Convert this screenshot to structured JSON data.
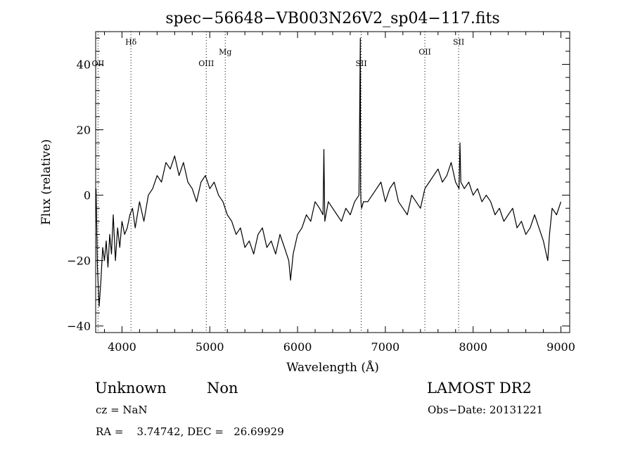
{
  "chart_data": {
    "type": "line",
    "title": "spec−56648−VB003N26V2_sp04−117.fits",
    "xlabel": "Wavelength (Å)",
    "ylabel": "Flux (relative)",
    "xlim": [
      3700,
      9100
    ],
    "ylim": [
      -42,
      50
    ],
    "xticks": [
      4000,
      5000,
      6000,
      7000,
      8000,
      9000
    ],
    "xtick_labels": [
      "4000",
      "5000",
      "6000",
      "7000",
      "8000",
      "9000"
    ],
    "yticks": [
      -40,
      -20,
      0,
      20,
      40
    ],
    "ytick_labels": [
      "−40",
      "−20",
      "0",
      "20",
      "40"
    ],
    "grid": false,
    "line_color": "#000000",
    "series": [
      {
        "x": [
          3705,
          3720,
          3740,
          3760,
          3780,
          3800,
          3820,
          3840,
          3860,
          3880,
          3900,
          3925,
          3950,
          3975,
          4000,
          4030,
          4060,
          4090,
          4120,
          4150,
          4200,
          4250,
          4300,
          4350,
          4400,
          4450,
          4500,
          4550,
          4600,
          4650,
          4700,
          4750,
          4800,
          4850,
          4900,
          4950,
          5000,
          5050,
          5100,
          5150,
          5200,
          5250,
          5300,
          5350,
          5400,
          5450,
          5500,
          5550,
          5600,
          5650,
          5700,
          5750,
          5800,
          5850,
          5900,
          5920,
          5950,
          6000,
          6050,
          6100,
          6150,
          6200,
          6250,
          6290,
          6300,
          6310,
          6350,
          6400,
          6450,
          6500,
          6550,
          6600,
          6650,
          6700,
          6715,
          6718,
          6722,
          6730,
          6750,
          6800,
          6850,
          6900,
          6950,
          7000,
          7050,
          7100,
          7150,
          7200,
          7250,
          7300,
          7350,
          7400,
          7450,
          7500,
          7550,
          7600,
          7650,
          7700,
          7750,
          7800,
          7840,
          7850,
          7860,
          7900,
          7950,
          8000,
          8050,
          8100,
          8150,
          8200,
          8250,
          8300,
          8350,
          8400,
          8450,
          8500,
          8550,
          8600,
          8650,
          8700,
          8750,
          8800,
          8850,
          8870,
          8900,
          8950,
          9000
        ],
        "y": [
          2,
          -22,
          -34,
          -26,
          -16,
          -20,
          -14,
          -22,
          -12,
          -18,
          -6,
          -20,
          -10,
          -16,
          -8,
          -12,
          -10,
          -6,
          -4,
          -10,
          -2,
          -8,
          0,
          2,
          6,
          4,
          10,
          8,
          12,
          6,
          10,
          4,
          2,
          -2,
          4,
          6,
          2,
          4,
          0,
          -2,
          -6,
          -8,
          -12,
          -10,
          -16,
          -14,
          -18,
          -12,
          -10,
          -16,
          -14,
          -18,
          -12,
          -16,
          -20,
          -26,
          -18,
          -12,
          -10,
          -6,
          -8,
          -2,
          -4,
          -6,
          14,
          -8,
          -2,
          -4,
          -6,
          -8,
          -4,
          -6,
          -2,
          0,
          48,
          2,
          -2,
          -4,
          -2,
          -2,
          0,
          2,
          4,
          -2,
          2,
          4,
          -2,
          -4,
          -6,
          0,
          -2,
          -4,
          2,
          4,
          6,
          8,
          4,
          6,
          10,
          4,
          2,
          16,
          4,
          2,
          4,
          0,
          2,
          -2,
          0,
          -2,
          -6,
          -4,
          -8,
          -6,
          -4,
          -10,
          -8,
          -12,
          -10,
          -6,
          -10,
          -14,
          -20,
          -12,
          -4,
          -6,
          -2
        ]
      }
    ],
    "line_markers": [
      {
        "label": "OII",
        "x": 3727,
        "label_y": 39.5
      },
      {
        "label": "Hδ",
        "x": 4102,
        "label_y": 46
      },
      {
        "label": "OIII",
        "x": 4960,
        "label_y": 39.5
      },
      {
        "label": "Mg",
        "x": 5176,
        "label_y": 43
      },
      {
        "label": "SII",
        "x": 6725,
        "label_y": 39.5
      },
      {
        "label": "OII",
        "x": 7450,
        "label_y": 43
      },
      {
        "label": "SII",
        "x": 7835,
        "label_y": 46
      }
    ]
  },
  "footer": {
    "class_label": "Unknown",
    "subclass_label": "Non",
    "survey_label": "LAMOST DR2",
    "cz_text": "cz = NaN",
    "obsdate_text": "Obs−Date: 20131221",
    "radec_text": "RA =    3.74742, DEC =   26.69929"
  }
}
